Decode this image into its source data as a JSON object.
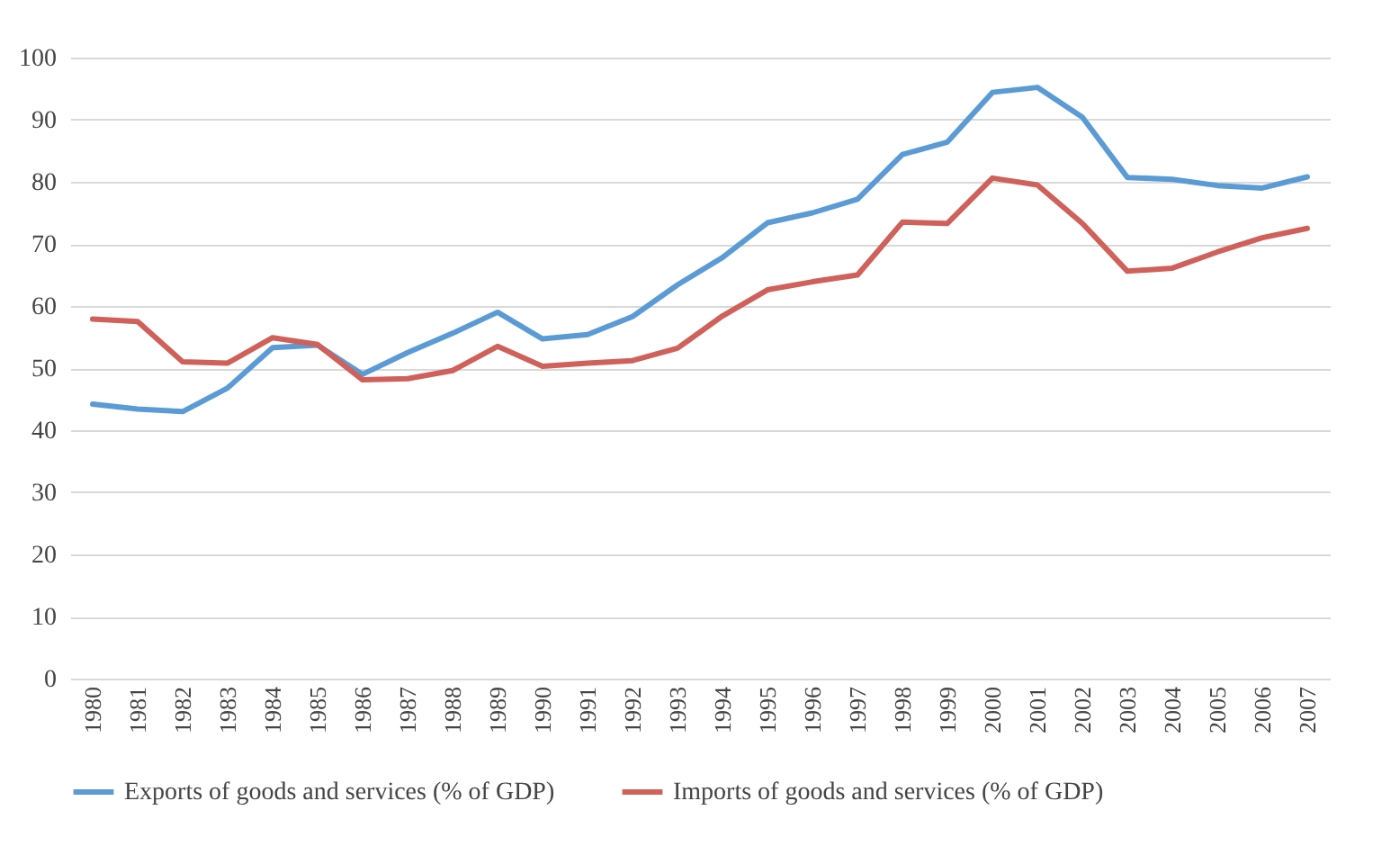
{
  "chart_data": {
    "type": "line",
    "categories": [
      "1980",
      "1981",
      "1982",
      "1983",
      "1984",
      "1985",
      "1986",
      "1987",
      "1988",
      "1989",
      "1990",
      "1991",
      "1992",
      "1993",
      "1994",
      "1995",
      "1996",
      "1997",
      "1998",
      "1999",
      "2000",
      "2001",
      "2002",
      "2003",
      "2004",
      "2005",
      "2006",
      "2007"
    ],
    "series": [
      {
        "name": "Exports of goods and services (% of GDP)",
        "color": "#5b9bd5",
        "values": [
          44.2,
          43.4,
          43,
          46.8,
          53.3,
          53.7,
          49,
          52.5,
          55.6,
          59,
          54.7,
          55.4,
          58.3,
          63.4,
          67.8,
          73.4,
          75,
          77.2,
          84.4,
          86.4,
          94.4,
          95.2,
          90.4,
          80.7,
          80.4,
          79.4,
          79,
          80.8
        ]
      },
      {
        "name": "Imports of goods and services (% of GDP)",
        "color": "#d0605a",
        "values": [
          57.9,
          57.5,
          51,
          50.8,
          54.9,
          53.8,
          48.1,
          48.3,
          49.6,
          53.5,
          50.3,
          50.8,
          51.2,
          53.2,
          58.4,
          62.6,
          63.9,
          65,
          73.5,
          73.3,
          80.6,
          79.5,
          73.3,
          65.6,
          66.1,
          68.7,
          71,
          72.5
        ]
      }
    ],
    "ylim": [
      0,
      100
    ],
    "yticks": [
      0,
      10,
      20,
      30,
      40,
      50,
      60,
      70,
      80,
      90,
      100
    ],
    "grid": "y",
    "legend": "bottom",
    "marker": "none",
    "line_style": "solid"
  }
}
